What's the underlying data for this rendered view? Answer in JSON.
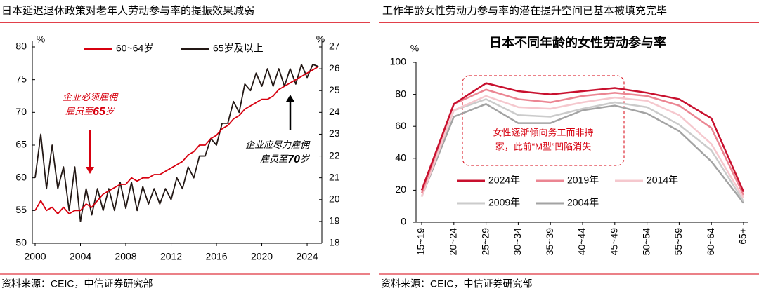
{
  "chart_data": [
    {
      "type": "line",
      "header": "日本延迟退休政策对老年人劳动参与率的提振效果减弱",
      "source": "资料来源：CEIC，中信证券研究部",
      "ylabel": "%",
      "y2label": "%",
      "xlim": [
        2000,
        2025.3
      ],
      "xticks": [
        2000,
        2004,
        2008,
        2012,
        2016,
        2020,
        2024
      ],
      "ylim": [
        50,
        80
      ],
      "yticks": [
        50,
        55,
        60,
        65,
        70,
        75,
        80
      ],
      "y2lim": [
        18,
        27
      ],
      "y2ticks": [
        18,
        19,
        20,
        21,
        22,
        23,
        24,
        25,
        26,
        27
      ],
      "x": [
        2000,
        2000.5,
        2001,
        2001.5,
        2002,
        2002.5,
        2003,
        2003.5,
        2004,
        2004.5,
        2005,
        2005.5,
        2006,
        2006.5,
        2007,
        2007.5,
        2008,
        2008.5,
        2009,
        2009.5,
        2010,
        2010.5,
        2011,
        2011.5,
        2012,
        2012.5,
        2013,
        2013.5,
        2014,
        2014.5,
        2015,
        2015.5,
        2016,
        2016.5,
        2017,
        2017.5,
        2018,
        2018.5,
        2019,
        2019.5,
        2020,
        2020.5,
        2021,
        2021.5,
        2022,
        2022.5,
        2023,
        2023.5,
        2024,
        2024.5,
        2025
      ],
      "series": [
        {
          "name": "60~64岁",
          "color": "#d7000f",
          "axis": "y",
          "values": [
            55,
            56.5,
            55,
            55.5,
            54.5,
            55.5,
            54.5,
            55,
            55,
            56,
            55.5,
            56.5,
            57.5,
            58,
            58.5,
            59,
            59,
            60,
            59.5,
            60,
            60,
            60.5,
            60.5,
            61,
            61.5,
            62,
            62.5,
            63.5,
            64,
            65,
            65,
            66,
            66.5,
            67.5,
            68,
            69,
            69.5,
            70.5,
            71,
            71.5,
            72,
            72,
            72.5,
            73.5,
            74,
            74.5,
            75,
            75.5,
            76,
            76.5,
            77
          ]
        },
        {
          "name": "65岁及以上",
          "color": "#231815",
          "axis": "y2",
          "values": [
            21,
            23,
            20.5,
            22.5,
            20.5,
            21.5,
            19.5,
            21.5,
            19,
            20.5,
            19.3,
            20.5,
            19.5,
            20.5,
            19.5,
            20.8,
            19.6,
            20.8,
            19.5,
            20.6,
            19.8,
            20.5,
            19.8,
            20.5,
            20,
            21,
            20.5,
            21.5,
            21,
            22,
            22,
            22.8,
            22.5,
            23.5,
            23.5,
            24.5,
            24,
            25.3,
            25,
            25.8,
            25.2,
            26,
            25.2,
            26,
            25.2,
            26,
            25.3,
            26.2,
            25.6,
            26.2,
            26.1
          ]
        }
      ],
      "annotations": [
        {
          "lines": [
            "企业必须雇佣",
            "雇员至65岁"
          ]
        },
        {
          "lines": [
            "企业应尽力雇佣",
            "雇员至70岁"
          ]
        }
      ]
    },
    {
      "type": "line",
      "header": "工作年龄女性劳动力参与率的潜在提升空间已基本被填充完毕",
      "title": "日本不同年龄的女性劳动参与率",
      "source": "资料来源：CEIC，中信证券研究部",
      "ylabel": "%",
      "ylim": [
        0,
        100
      ],
      "yticks": [
        0,
        20,
        40,
        60,
        80,
        100
      ],
      "categories": [
        "15~19",
        "20~24",
        "25~29",
        "30~34",
        "35~39",
        "40~44",
        "45~49",
        "50~54",
        "55~59",
        "60~64",
        "65+"
      ],
      "series": [
        {
          "name": "2024年",
          "color": "#c8102e",
          "values": [
            20,
            74,
            87,
            82,
            80,
            82,
            84,
            81,
            77,
            65,
            19
          ]
        },
        {
          "name": "2019年",
          "color": "#eb8592",
          "values": [
            18,
            74,
            83,
            77,
            75,
            79,
            81,
            79,
            73,
            59,
            17
          ]
        },
        {
          "name": "2014年",
          "color": "#f5c8ce",
          "values": [
            16,
            70,
            79,
            72,
            71,
            75,
            78,
            76,
            67,
            49,
            15
          ]
        },
        {
          "name": "2009年",
          "color": "#cbcbcb",
          "values": [
            16,
            70,
            77,
            67,
            66,
            71,
            75,
            72,
            61,
            45,
            13
          ]
        },
        {
          "name": "2004年",
          "color": "#a3a3a3",
          "values": [
            16,
            66,
            74,
            62,
            62,
            70,
            73,
            68,
            57,
            38,
            12
          ]
        }
      ],
      "annotations": [
        {
          "lines": [
            "女性逐渐倾向务工而非持",
            "家，此前“M型”凹陷消失"
          ]
        }
      ]
    }
  ]
}
